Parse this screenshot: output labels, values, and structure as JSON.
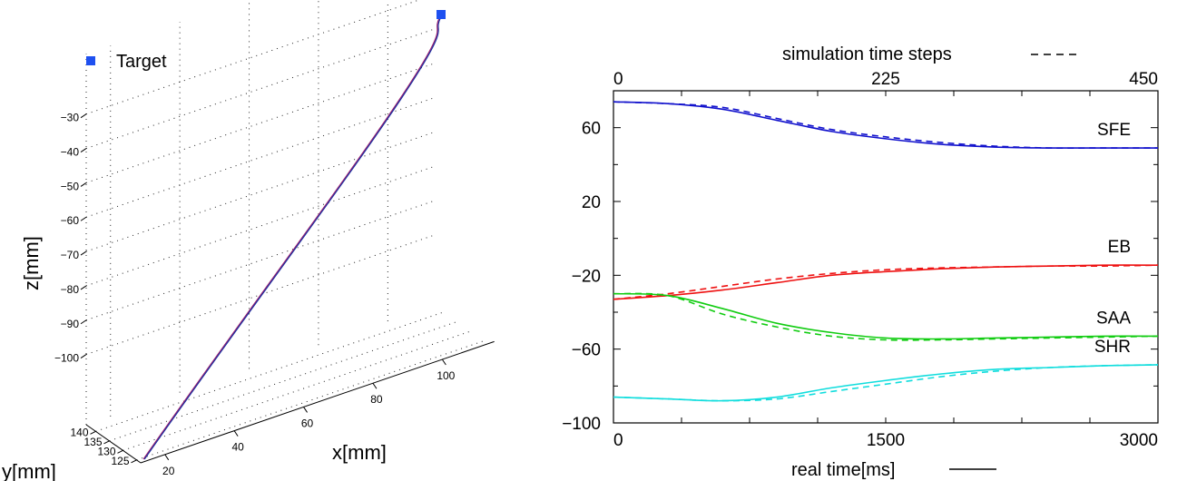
{
  "chart_data": [
    {
      "type": "line",
      "projection": "3d",
      "legend": {
        "label": "Target",
        "placement": "top-left"
      },
      "xlabel": "x[mm]",
      "ylabel": "y[mm]",
      "zlabel": "z[mm]",
      "xticks": [
        "20",
        "40",
        "60",
        "80",
        "100"
      ],
      "yticks": [
        "125",
        "130",
        "135",
        "140"
      ],
      "zticks": [
        "−30",
        "−40",
        "−50",
        "−60",
        "−70",
        "−80",
        "−90",
        "−100"
      ],
      "series": [
        {
          "kind": "trajectory",
          "color": "#9b1d6e"
        },
        {
          "kind": "trajectory",
          "color": "#1a2fa0"
        }
      ],
      "target_color": "#1e50f0",
      "grid": true
    },
    {
      "type": "line",
      "top_axis_label": "simulation time steps",
      "xlabel": "real time[ms]",
      "xlim": [
        0,
        3000
      ],
      "ylim": [
        -100,
        80
      ],
      "xticks": [
        "0",
        "1500",
        "3000"
      ],
      "top_ticks": [
        "0",
        "225",
        "450"
      ],
      "yticks": [
        "−100",
        "−60",
        "−20",
        "20",
        "60"
      ],
      "x": [
        0,
        300,
        600,
        900,
        1200,
        1500,
        1800,
        2100,
        2400,
        2700,
        3000
      ],
      "series": [
        {
          "name": "SFE",
          "color": "#1111cc",
          "solid": [
            74,
            73,
            70,
            64,
            58,
            54,
            51,
            49.5,
            49,
            49,
            49
          ],
          "dashed": [
            74,
            73,
            71,
            65,
            59,
            55,
            52,
            50,
            49,
            49,
            49
          ]
        },
        {
          "name": "EB",
          "color": "#ee1111",
          "solid": [
            -33,
            -31,
            -28,
            -24,
            -20,
            -18,
            -16.5,
            -15.5,
            -15,
            -14.5,
            -14.5
          ],
          "dashed": [
            -33,
            -30,
            -26,
            -22,
            -19,
            -17,
            -16,
            -15.5,
            -15,
            -15,
            -14.5
          ]
        },
        {
          "name": "SAA",
          "color": "#11cc11",
          "solid": [
            -30,
            -31,
            -38,
            -46,
            -51,
            -54,
            -54.5,
            -54,
            -53.5,
            -53,
            -53
          ],
          "dashed": [
            -30,
            -31,
            -41,
            -48,
            -53,
            -55,
            -55,
            -54.5,
            -54,
            -53.5,
            -53
          ]
        },
        {
          "name": "SHR",
          "color": "#11dddd",
          "solid": [
            -86,
            -87,
            -88,
            -86,
            -81,
            -77,
            -73.5,
            -71,
            -70,
            -69,
            -68.5
          ],
          "dashed": [
            -86,
            -87,
            -88,
            -87,
            -83,
            -79,
            -75,
            -72,
            -70,
            -69,
            -68.5
          ]
        }
      ],
      "legend": {
        "top_line": "dashed",
        "bottom_line": "solid"
      },
      "grid": false
    }
  ]
}
